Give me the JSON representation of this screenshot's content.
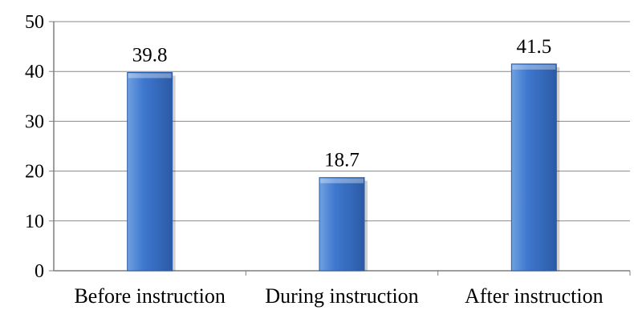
{
  "chart_data": {
    "type": "bar",
    "categories": [
      "Before instruction",
      "During instruction",
      "After instruction"
    ],
    "values": [
      39.8,
      18.7,
      41.5
    ],
    "data_labels": [
      "39.8",
      "18.7",
      "41.5"
    ],
    "title": "",
    "xlabel": "",
    "ylabel": "",
    "ylim": [
      0,
      50
    ],
    "yticks": [
      0,
      10,
      20,
      30,
      40,
      50
    ],
    "grid": true,
    "legend": "none",
    "colors": {
      "bar_light": "#6fa0e0",
      "bar_mid": "#3f78cf",
      "bar_dark": "#2b5aa6",
      "grid": "#8a8a8a",
      "axis": "#7f7f7f"
    }
  }
}
